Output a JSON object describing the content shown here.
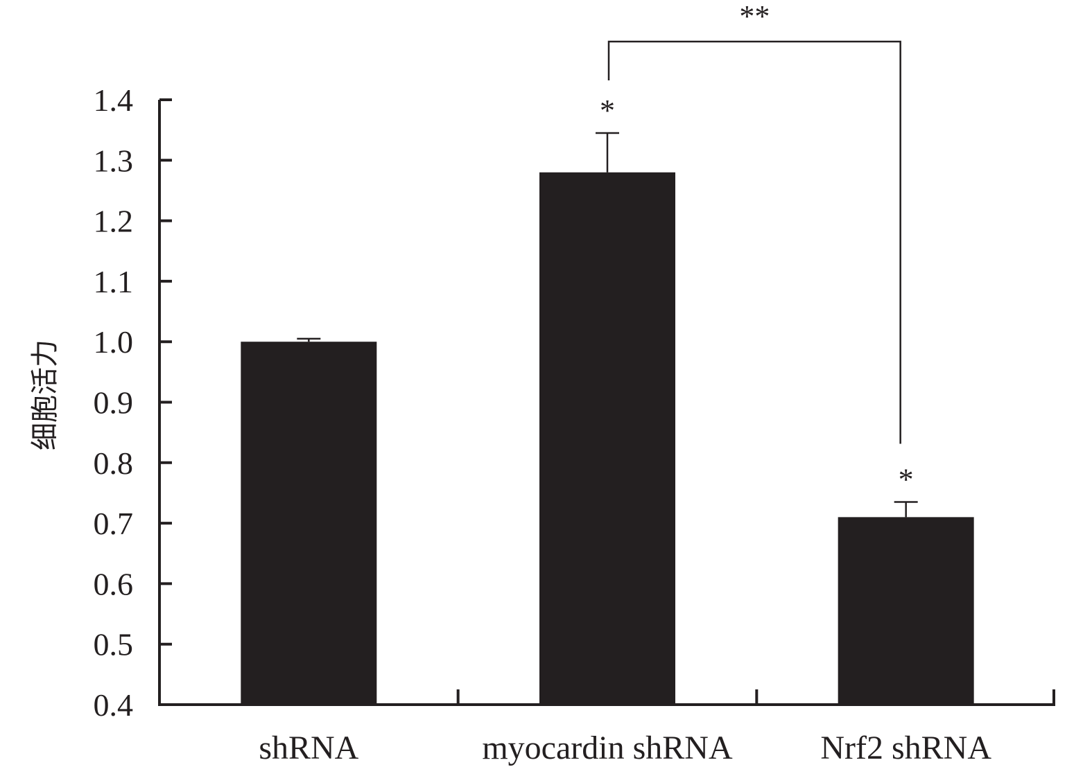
{
  "chart_data": {
    "type": "bar",
    "categories": [
      "shRNA",
      "myocardin shRNA",
      "Nrf2 shRNA"
    ],
    "values": [
      1.0,
      1.28,
      0.71
    ],
    "errors": [
      0.005,
      0.065,
      0.025
    ],
    "significance": [
      "",
      "*",
      "*"
    ],
    "comparison": {
      "from": 1,
      "to": 2,
      "label": "**"
    },
    "ylabel": "细胞活力",
    "xlabel": "",
    "ylim": [
      0.4,
      1.4
    ],
    "yticks": [
      "0.4",
      "0.5",
      "0.6",
      "0.7",
      "0.8",
      "0.9",
      "1.0",
      "1.1",
      "1.2",
      "1.3",
      "1.4"
    ],
    "colors": {
      "bar": "#231f20",
      "axis": "#231f20",
      "background": "#ffffff"
    },
    "grid": false
  }
}
